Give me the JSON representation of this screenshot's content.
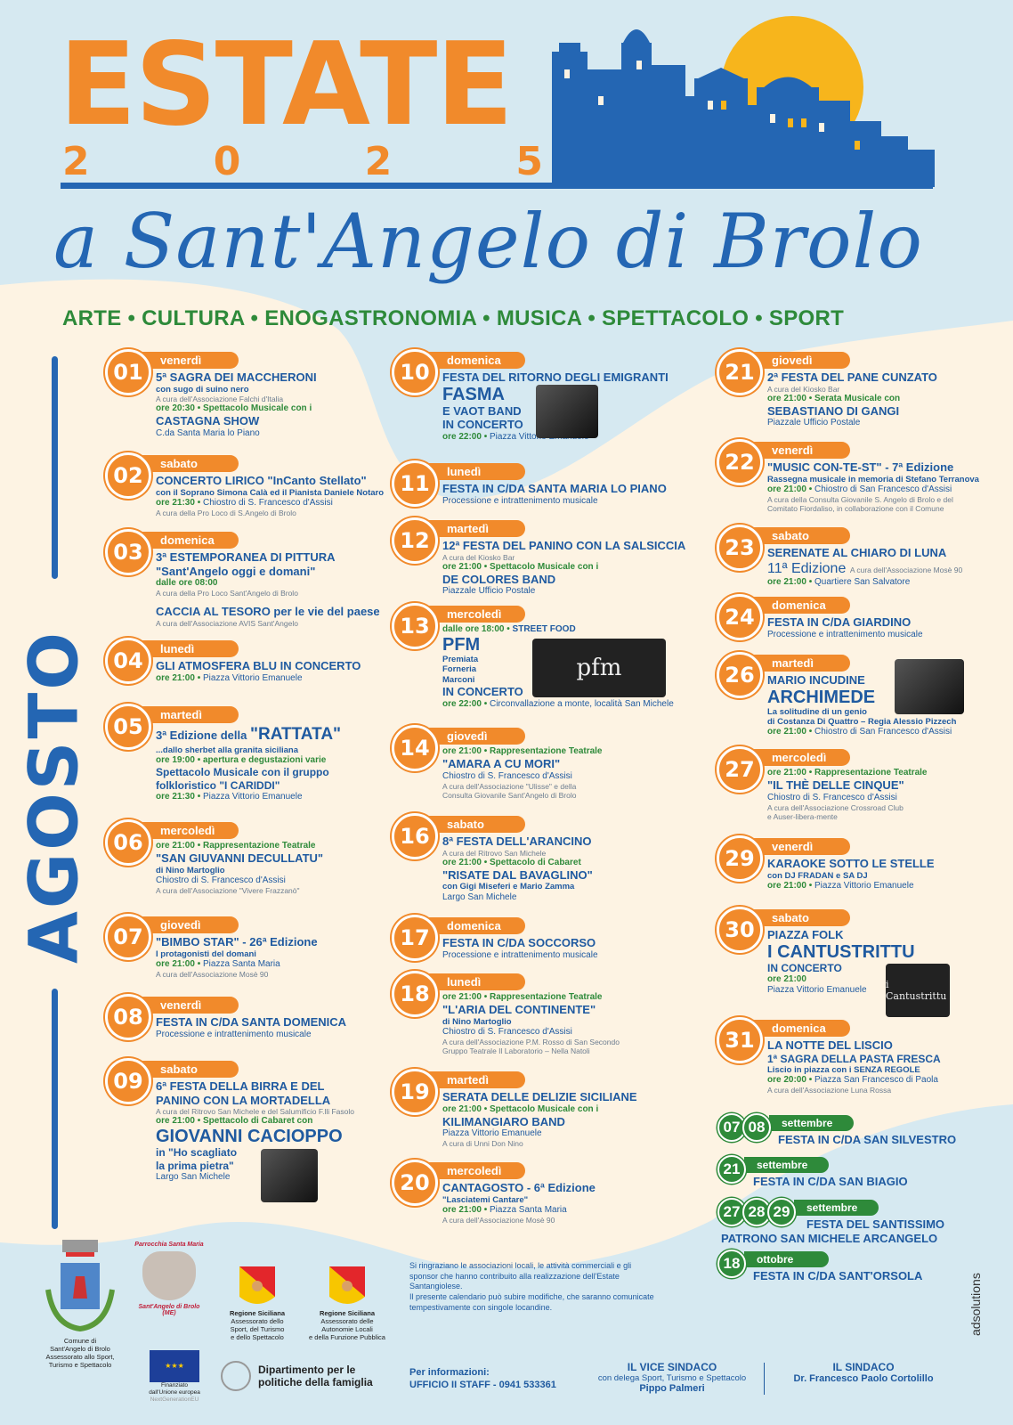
{
  "header": {
    "title": "ESTATE",
    "year_digits": [
      "2",
      "0",
      "2",
      "5"
    ],
    "subtitle": "a Sant'Angelo di Brolo",
    "tagline": "ARTE • CULTURA • ENOGASTRONOMIA • MUSICA • SPETTACOLO • SPORT"
  },
  "month": "AGOSTO",
  "colors": {
    "orange": "#f18a2b",
    "blue": "#2466b3",
    "green": "#2e8a3a",
    "sun": "#f7b51c",
    "cream": "#fdf3e3",
    "light_blue": "#d6e9f1"
  },
  "columns": [
    [
      {
        "day": "01",
        "weekday": "venerdì",
        "lines": [
          {
            "t": "h",
            "text": "5ª SAGRA DEI MACCHERONI"
          },
          {
            "t": "s",
            "text": "con sugo di suino nero"
          },
          {
            "t": "n",
            "text": "A cura dell'Associazione Falchi d'Italia"
          },
          {
            "t": "g",
            "text": "ore 20:30 • Spettacolo Musicale con i"
          },
          {
            "t": "h",
            "text": "CASTAGNA SHOW"
          },
          {
            "t": "p",
            "text": "C.da Santa Maria lo Piano"
          }
        ]
      },
      {
        "day": "02",
        "weekday": "sabato",
        "lines": [
          {
            "t": "h",
            "text": "CONCERTO LIRICO \"InCanto Stellato\""
          },
          {
            "t": "s",
            "text": "con il Soprano Simona Calà ed il Pianista Daniele Notaro"
          },
          {
            "t": "g",
            "text": "ore 21:30 •",
            "rest": "Chiostro di S. Francesco d'Assisi"
          },
          {
            "t": "n",
            "text": "A cura della Pro Loco di S.Angelo di Brolo"
          }
        ]
      },
      {
        "day": "03",
        "weekday": "domenica",
        "lines": [
          {
            "t": "h",
            "text": "3ª ESTEMPORANEA DI PITTURA"
          },
          {
            "t": "h",
            "text": "\"Sant'Angelo oggi e domani\""
          },
          {
            "t": "g",
            "text": "dalle ore 08:00"
          },
          {
            "t": "n",
            "text": "A cura della Pro Loco Sant'Angelo di Brolo"
          },
          {
            "t": "gap"
          },
          {
            "t": "h",
            "text": "CACCIA AL TESORO per le vie del paese"
          },
          {
            "t": "n",
            "text": "A cura dell'Associazione AVIS Sant'Angelo"
          }
        ]
      },
      {
        "day": "04",
        "weekday": "lunedì",
        "lines": [
          {
            "t": "h",
            "text": "GLI ATMOSFERA BLU IN CONCERTO"
          },
          {
            "t": "g",
            "text": "ore 21:00 •",
            "rest": "Piazza Vittorio Emanuele"
          }
        ]
      },
      {
        "day": "05",
        "weekday": "martedì",
        "lines": [
          {
            "t": "h",
            "text": "3ª Edizione della",
            "big": "\"RATTATA\""
          },
          {
            "t": "s",
            "text": "...dallo sherbet alla granita siciliana"
          },
          {
            "t": "g",
            "text": "ore 19:00 • apertura e degustazioni varie"
          },
          {
            "t": "h2",
            "text": "Spettacolo Musicale con il gruppo"
          },
          {
            "t": "h2",
            "text": "folkloristico \"I CARIDDI\""
          },
          {
            "t": "g",
            "text": "ore 21:30 •",
            "rest": "Piazza Vittorio Emanuele"
          }
        ]
      },
      {
        "day": "06",
        "weekday": "mercoledì",
        "lines": [
          {
            "t": "g",
            "text": "ore 21:00 • Rappresentazione Teatrale"
          },
          {
            "t": "h",
            "text": "\"SAN GIUVANNI DECULLATU\""
          },
          {
            "t": "s",
            "text": "di Nino Martoglio"
          },
          {
            "t": "p",
            "text": "Chiostro di S. Francesco d'Assisi"
          },
          {
            "t": "n",
            "text": "A cura dell'Associazione \"Vivere Frazzanò\""
          }
        ]
      },
      {
        "day": "07",
        "weekday": "giovedì",
        "lines": [
          {
            "t": "h",
            "text": "\"BIMBO STAR\" - 26ª Edizione"
          },
          {
            "t": "s",
            "text": "I protagonisti del domani"
          },
          {
            "t": "g",
            "text": "ore 21:00 •",
            "rest": "Piazza Santa Maria"
          },
          {
            "t": "n",
            "text": "A cura dell'Associazione Mosè 90"
          }
        ]
      },
      {
        "day": "08",
        "weekday": "venerdì",
        "lines": [
          {
            "t": "h",
            "text": "FESTA IN C/DA SANTA DOMENICA"
          },
          {
            "t": "p",
            "text": "Processione e intrattenimento musicale"
          }
        ]
      },
      {
        "day": "09",
        "weekday": "sabato",
        "photo": "performer-photo",
        "lines": [
          {
            "t": "h",
            "text": "6ª FESTA DELLA BIRRA E DEL"
          },
          {
            "t": "h",
            "text": "PANINO CON LA MORTADELLA"
          },
          {
            "t": "n",
            "text": "A cura del Ritrovo San Michele e del Salumificio F.lli Fasolo"
          },
          {
            "t": "g",
            "text": "ore 21:00 • Spettacolo di Cabaret con"
          },
          {
            "t": "b",
            "text": "GIOVANNI CACIOPPO"
          },
          {
            "t": "h2",
            "text": "in \"Ho scagliato"
          },
          {
            "t": "h2",
            "text": "la prima pietra\""
          },
          {
            "t": "p",
            "text": "Largo San Michele"
          }
        ]
      }
    ],
    [
      {
        "day": "10",
        "weekday": "domenica",
        "photo": "performer-photo",
        "lines": [
          {
            "t": "h",
            "text": "FESTA DEL RITORNO DEGLI EMIGRANTI"
          },
          {
            "t": "b",
            "text": "FASMA"
          },
          {
            "t": "h",
            "text": "E VAOT BAND"
          },
          {
            "t": "h",
            "text": "IN CONCERTO"
          },
          {
            "t": "g",
            "text": "ore 22:00 •",
            "rest": "Piazza Vittorio Emanuele"
          }
        ]
      },
      {
        "day": "11",
        "weekday": "lunedì",
        "lines": [
          {
            "t": "h",
            "text": "FESTA IN C/DA SANTA MARIA LO PIANO"
          },
          {
            "t": "p",
            "text": "Processione e intrattenimento musicale"
          }
        ]
      },
      {
        "day": "12",
        "weekday": "martedì",
        "lines": [
          {
            "t": "h",
            "text": "12ª FESTA DEL PANINO CON LA SALSICCIA"
          },
          {
            "t": "n",
            "text": "A cura del Kiosko Bar"
          },
          {
            "t": "g",
            "text": "ore 21:00 • Spettacolo Musicale con i"
          },
          {
            "t": "h",
            "text": "DE COLORES BAND"
          },
          {
            "t": "p",
            "text": "Piazzale Ufficio Postale"
          }
        ]
      },
      {
        "day": "13",
        "weekday": "mercoledì",
        "photo": "band-photo",
        "photo_text": "pfm",
        "lines": [
          {
            "t": "g",
            "text": "dalle ore 18:00 •",
            "rest": "STREET FOOD",
            "rest_bold": true
          },
          {
            "t": "b",
            "text": "PFM"
          },
          {
            "t": "s",
            "text": "Premiata"
          },
          {
            "t": "s",
            "text": "Forneria"
          },
          {
            "t": "s",
            "text": "Marconi"
          },
          {
            "t": "h",
            "text": "IN CONCERTO"
          },
          {
            "t": "g",
            "text": "ore 22:00 •",
            "rest": "Circonvallazione a monte, località San Michele"
          }
        ]
      },
      {
        "day": "14",
        "weekday": "giovedì",
        "lines": [
          {
            "t": "g",
            "text": "ore 21:00 • Rappresentazione Teatrale"
          },
          {
            "t": "h",
            "text": "\"AMARA A CU MORI\""
          },
          {
            "t": "p",
            "text": "Chiostro di S. Francesco d'Assisi"
          },
          {
            "t": "n",
            "text": "A cura dell'Associazione \"Ulisse\" e della"
          },
          {
            "t": "n",
            "text": "Consulta Giovanile Sant'Angelo di Brolo"
          }
        ]
      },
      {
        "day": "16",
        "weekday": "sabato",
        "lines": [
          {
            "t": "h",
            "text": "8ª FESTA DELL'ARANCINO"
          },
          {
            "t": "n",
            "text": "A cura del Ritrovo San Michele"
          },
          {
            "t": "g",
            "text": "ore 21:00 • Spettacolo di Cabaret"
          },
          {
            "t": "h",
            "text": "\"RISATE DAL BAVAGLINO\""
          },
          {
            "t": "s",
            "text": "con Gigi Miseferi e Mario Zamma"
          },
          {
            "t": "p",
            "text": "Largo San Michele"
          }
        ]
      },
      {
        "day": "17",
        "weekday": "domenica",
        "lines": [
          {
            "t": "h",
            "text": "FESTA IN C/DA SOCCORSO"
          },
          {
            "t": "p",
            "text": "Processione e intrattenimento musicale"
          }
        ]
      },
      {
        "day": "18",
        "weekday": "lunedì",
        "lines": [
          {
            "t": "g",
            "text": "ore 21:00 • Rappresentazione Teatrale"
          },
          {
            "t": "h",
            "text": "\"L'ARIA DEL CONTINENTE\""
          },
          {
            "t": "s",
            "text": "di Nino Martoglio"
          },
          {
            "t": "p",
            "text": "Chiostro di S. Francesco d'Assisi"
          },
          {
            "t": "n",
            "text": "A cura dell'Associazione P.M. Rosso di San Secondo"
          },
          {
            "t": "n",
            "text": "Gruppo Teatrale Il Laboratorio – Nella Natoli"
          }
        ]
      },
      {
        "day": "19",
        "weekday": "martedì",
        "lines": [
          {
            "t": "h",
            "text": "SERATA DELLE DELIZIE SICILIANE"
          },
          {
            "t": "g",
            "text": "ore 21:00 • Spettacolo Musicale con i"
          },
          {
            "t": "h",
            "text": "KILIMANGIARO BAND"
          },
          {
            "t": "p",
            "text": "Piazza Vittorio Emanuele"
          },
          {
            "t": "n",
            "text": "A cura di Unni Don Nino"
          }
        ]
      },
      {
        "day": "20",
        "weekday": "mercoledì",
        "lines": [
          {
            "t": "h",
            "text": "CANTAGOSTO - 6ª Edizione"
          },
          {
            "t": "s",
            "text": "\"Lasciatemi Cantare\""
          },
          {
            "t": "g",
            "text": "ore 21:00 •",
            "rest": "Piazza Santa Maria"
          },
          {
            "t": "n",
            "text": "A cura dell'Associazione Mosè 90"
          }
        ]
      }
    ],
    [
      {
        "day": "21",
        "weekday": "giovedì",
        "lines": [
          {
            "t": "h",
            "text": "2ª FESTA DEL PANE CUNZATO"
          },
          {
            "t": "n",
            "text": "A cura del Kiosko Bar"
          },
          {
            "t": "g",
            "text": "ore 21:00 • Serata Musicale con"
          },
          {
            "t": "h",
            "text": "SEBASTIANO DI GANGI"
          },
          {
            "t": "p",
            "text": "Piazzale Ufficio Postale"
          }
        ]
      },
      {
        "day": "22",
        "weekday": "venerdì",
        "lines": [
          {
            "t": "h",
            "text": "\"MUSIC CON-TE-ST\" - 7ª Edizione"
          },
          {
            "t": "s",
            "text": "Rassegna musicale in memoria di Stefano Terranova"
          },
          {
            "t": "g",
            "text": "ore 21:00 •",
            "rest": "Chiostro di San Francesco d'Assisi"
          },
          {
            "t": "n",
            "text": "A cura della Consulta Giovanile S. Angelo di Brolo e del"
          },
          {
            "t": "n",
            "text": "Comitato Fiordaliso, in collaborazione con il Comune"
          }
        ]
      },
      {
        "day": "23",
        "weekday": "sabato",
        "lines": [
          {
            "t": "h",
            "text": "SERENATE AL CHIARO DI LUNA"
          },
          {
            "t": "hn",
            "text": "11ª Edizione",
            "rest": "A cura dell'Associazione Mosè 90"
          },
          {
            "t": "g",
            "text": "ore 21:00 •",
            "rest": "Quartiere San Salvatore"
          }
        ]
      },
      {
        "day": "24",
        "weekday": "domenica",
        "lines": [
          {
            "t": "h",
            "text": "FESTA IN C/DA GIARDINO"
          },
          {
            "t": "p",
            "text": "Processione e intrattenimento musicale"
          }
        ]
      },
      {
        "day": "26",
        "weekday": "martedì",
        "photo": "performer-photo",
        "lines": [
          {
            "t": "h",
            "text": "MARIO INCUDINE"
          },
          {
            "t": "b",
            "text": "ARCHIMEDE"
          },
          {
            "t": "s",
            "text": "La solitudine di un genio"
          },
          {
            "t": "s",
            "text": "di Costanza Di Quattro – Regia Alessio Pizzech"
          },
          {
            "t": "g",
            "text": "ore 21:00 •",
            "rest": "Chiostro di San Francesco d'Assisi"
          }
        ]
      },
      {
        "day": "27",
        "weekday": "mercoledì",
        "lines": [
          {
            "t": "g",
            "text": "ore 21:00 • Rappresentazione Teatrale"
          },
          {
            "t": "h",
            "text": "\"IL THÈ DELLE CINQUE\""
          },
          {
            "t": "p",
            "text": "Chiostro di S. Francesco d'Assisi"
          },
          {
            "t": "n",
            "text": "A cura dell'Associazione Crossroad Club"
          },
          {
            "t": "n",
            "text": "e Auser-libera-mente"
          }
        ]
      },
      {
        "day": "29",
        "weekday": "venerdì",
        "lines": [
          {
            "t": "h",
            "text": "KARAOKE SOTTO LE STELLE"
          },
          {
            "t": "s",
            "text": "con DJ FRADAN e SA DJ"
          },
          {
            "t": "g",
            "text": "ore 21:00 •",
            "rest": "Piazza Vittorio Emanuele"
          }
        ]
      },
      {
        "day": "30",
        "weekday": "sabato",
        "photo": "band-photo",
        "photo_text": "i Cantustrittu",
        "lines": [
          {
            "t": "h",
            "text": "PIAZZA FOLK"
          },
          {
            "t": "b",
            "text": "I CANTUSTRITTU"
          },
          {
            "t": "h2",
            "text": "IN CONCERTO"
          },
          {
            "t": "g",
            "text": "ore 21:00"
          },
          {
            "t": "p",
            "text": "Piazza Vittorio Emanuele"
          }
        ]
      },
      {
        "day": "31",
        "weekday": "domenica",
        "lines": [
          {
            "t": "h",
            "text": "LA NOTTE DEL LISCIO"
          },
          {
            "t": "h2",
            "text": "1ª SAGRA DELLA PASTA FRESCA"
          },
          {
            "t": "s",
            "text": "Liscio in piazza con i SENZA REGOLE"
          },
          {
            "t": "g",
            "text": "ore 20:00 •",
            "rest": "Piazza San Francesco di Paola"
          },
          {
            "t": "n",
            "text": "A cura dell'Associazione Luna Rossa"
          }
        ]
      }
    ]
  ],
  "later_events": [
    {
      "days": [
        "07",
        "08"
      ],
      "month": "settembre",
      "title": [
        "FESTA IN C/DA SAN SILVESTRO"
      ]
    },
    {
      "days": [
        "21"
      ],
      "month": "settembre",
      "title": [
        "FESTA IN C/DA SAN BIAGIO"
      ]
    },
    {
      "days": [
        "27",
        "28",
        "29"
      ],
      "month": "settembre",
      "title": [
        "FESTA DEL SANTISSIMO",
        "PATRONO SAN MICHELE ARCANGELO"
      ]
    },
    {
      "days": [
        "18"
      ],
      "month": "ottobre",
      "title": [
        "FESTA IN C/DA SANT'ORSOLA"
      ]
    }
  ],
  "footer": {
    "logos": {
      "comune": [
        "Comune di",
        "Sant'Angelo di Brolo",
        "Assessorato allo Sport,",
        "Turismo e Spettacolo"
      ],
      "parrocchia_top": "Parrocchia Santa Maria",
      "parrocchia_bottom": "Sant'Angelo di Brolo (ME)",
      "regione1": [
        "Regione Siciliana",
        "Assessorato dello",
        "Sport, del Turismo",
        "e dello Spettacolo"
      ],
      "regione2": [
        "Regione Siciliana",
        "Assessorato delle",
        "Autonomie Locali",
        "e della Funzione Pubblica"
      ],
      "eu": [
        "Finanziato",
        "dall'Unione europea",
        "NextGenerationEU"
      ],
      "dipartimento": [
        "Dipartimento per le",
        "politiche della famiglia"
      ]
    },
    "thanks": "Si ringraziano le associazioni locali, le attività commerciali e gli sponsor che hanno contribuito alla realizzazione dell'Estate Santangiolese.",
    "disclaimer": "Il presente calendario può subire modifiche, che saranno comunicate tempestivamente con singole locandine.",
    "info_label": "Per informazioni:",
    "info_value": "UFFICIO II STAFF - 0941 533361",
    "vice_sindaco": {
      "title": "IL VICE SINDACO",
      "role": "con delega Sport, Turismo e Spettacolo",
      "name": "Pippo Palmeri"
    },
    "sindaco": {
      "title": "IL SINDACO",
      "name": "Dr. Francesco Paolo Cortolillo"
    },
    "credit": "adsolutions"
  }
}
